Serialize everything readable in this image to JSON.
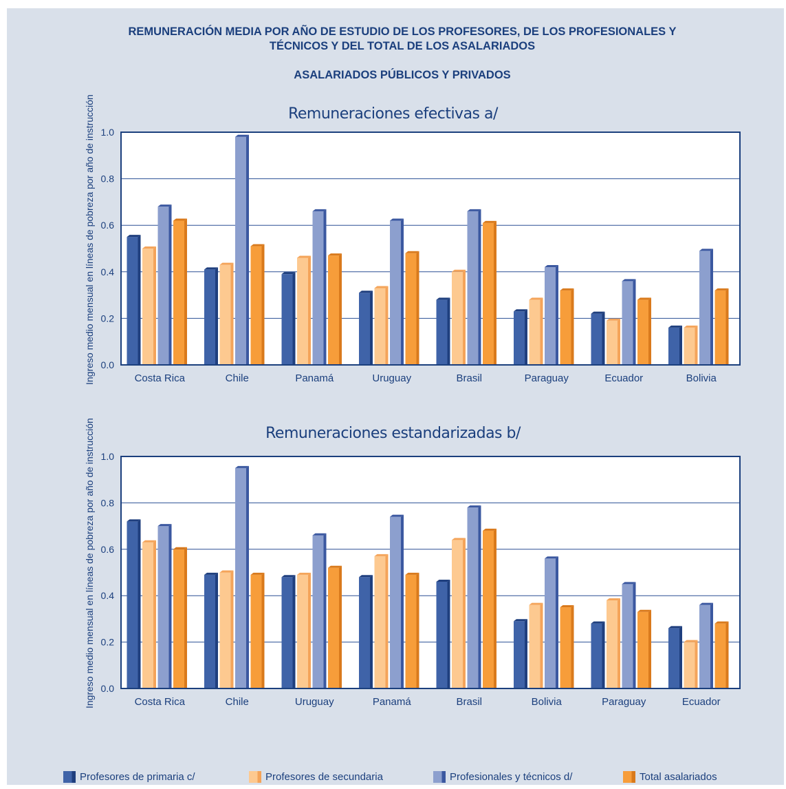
{
  "header": {
    "title_line1": "REMUNERACIÓN MEDIA POR AÑO DE ESTUDIO DE LOS PROFESORES, DE LOS PROFESIONALES  Y",
    "title_line2": "TÉCNICOS  Y DEL TOTAL DE LOS ASALARIADOS",
    "subtitle": "ASALARIADOS PÚBLICOS Y PRIVADOS"
  },
  "legend": [
    {
      "label": "Profesores de primaria c/",
      "color": "#3f63a8",
      "side": "#1f3f7e"
    },
    {
      "label": "Profesores de secundaria",
      "color": "#fdc990",
      "side": "#f4a45a"
    },
    {
      "label": "Profesionales y técnicos d/",
      "color": "#8c9fce",
      "side": "#3b58a0"
    },
    {
      "label": "Total asalariados",
      "color": "#f79d3a",
      "side": "#d97a1c"
    }
  ],
  "chart_data": [
    {
      "type": "bar",
      "title": "Remuneraciones efectivas a/",
      "ylabel": "Ingreso medio mensual en líneas de pobreza por año de instrucción",
      "ylim": [
        0,
        1.0
      ],
      "yticks": [
        "0.0",
        "0.2",
        "0.4",
        "0.6",
        "0.8",
        "1.0"
      ],
      "grid": true,
      "categories": [
        "Costa Rica",
        "Chile",
        "Panamá",
        "Uruguay",
        "Brasil",
        "Paraguay",
        "Ecuador",
        "Bolivia"
      ],
      "series": [
        {
          "name": "Profesores de primaria c/",
          "values": [
            0.55,
            0.41,
            0.39,
            0.31,
            0.28,
            0.23,
            0.22,
            0.16
          ]
        },
        {
          "name": "Profesores de secundaria",
          "values": [
            0.5,
            0.43,
            0.46,
            0.33,
            0.4,
            0.28,
            0.19,
            0.16
          ]
        },
        {
          "name": "Profesionales y técnicos d/",
          "values": [
            0.68,
            0.98,
            0.66,
            0.62,
            0.66,
            0.42,
            0.36,
            0.49
          ]
        },
        {
          "name": "Total asalariados",
          "values": [
            0.62,
            0.51,
            0.47,
            0.48,
            0.61,
            0.32,
            0.28,
            0.32
          ]
        }
      ]
    },
    {
      "type": "bar",
      "title": "Remuneraciones estandarizadas b/",
      "ylabel": "Ingreso medio mensual en líneas de pobreza por año de instrucción",
      "ylim": [
        0,
        1.0
      ],
      "yticks": [
        "0.0",
        "0.2",
        "0.4",
        "0.6",
        "0.8",
        "1.0"
      ],
      "grid": true,
      "categories": [
        "Costa Rica",
        "Chile",
        "Uruguay",
        "Panamá",
        "Brasil",
        "Bolivia",
        "Paraguay",
        "Ecuador"
      ],
      "series": [
        {
          "name": "Profesores de primaria c/",
          "values": [
            0.72,
            0.49,
            0.48,
            0.48,
            0.46,
            0.29,
            0.28,
            0.26
          ]
        },
        {
          "name": "Profesores de secundaria",
          "values": [
            0.63,
            0.5,
            0.49,
            0.57,
            0.64,
            0.36,
            0.38,
            0.2
          ]
        },
        {
          "name": "Profesionales y técnicos d/",
          "values": [
            0.7,
            0.95,
            0.66,
            0.74,
            0.78,
            0.56,
            0.45,
            0.36
          ]
        },
        {
          "name": "Total asalariados",
          "values": [
            0.6,
            0.49,
            0.52,
            0.49,
            0.68,
            0.35,
            0.33,
            0.28
          ]
        }
      ]
    }
  ]
}
